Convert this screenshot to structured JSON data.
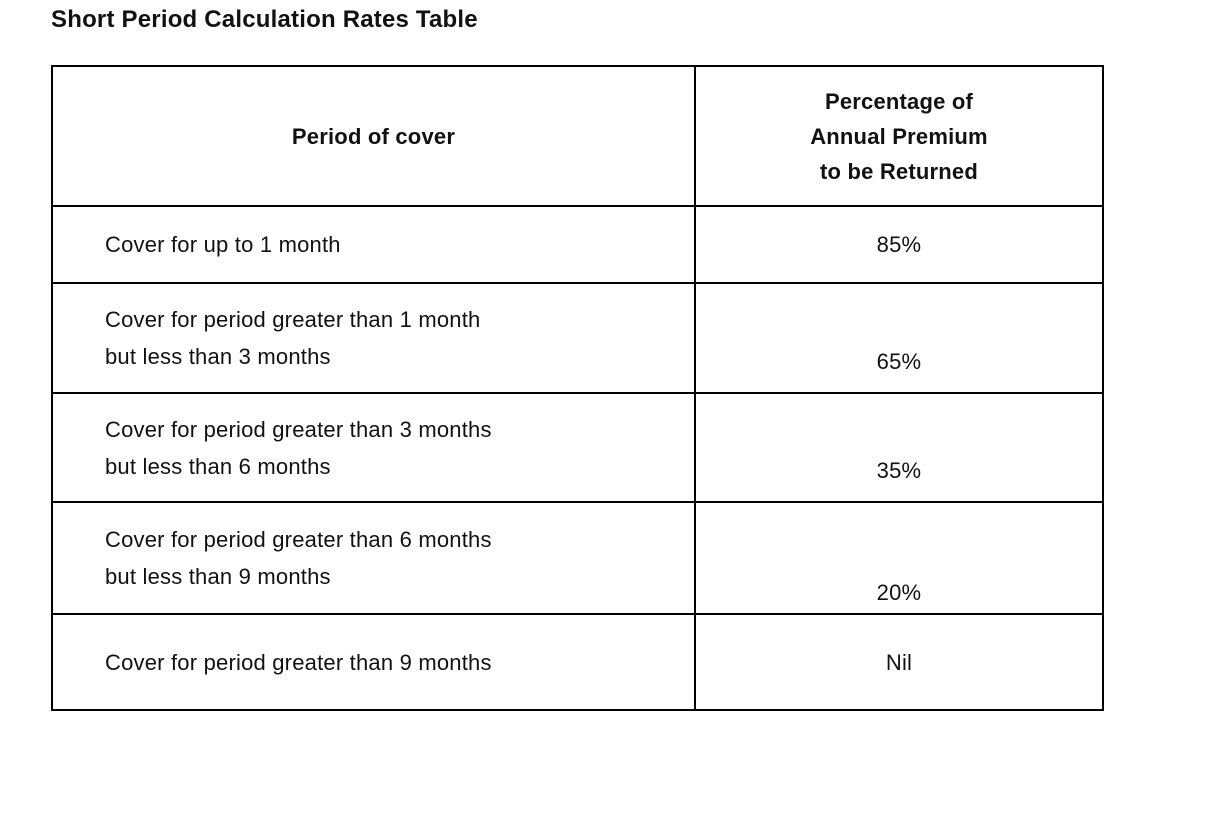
{
  "page": {
    "title": "Short Period Calculation Rates Table"
  },
  "table": {
    "headers": {
      "period": "Period of cover",
      "percentage": "Percentage of\nAnnual Premium\nto be Returned"
    },
    "rows": [
      {
        "period": "Cover for up to 1 month",
        "value": "85%"
      },
      {
        "period": "Cover for period greater than 1 month\nbut less than 3 months",
        "value": "65%"
      },
      {
        "period": "Cover for period greater than 3 months\nbut less than 6 months",
        "value": "35%"
      },
      {
        "period": "Cover for period greater than 6 months\nbut less than 9 months",
        "value": "20%"
      },
      {
        "period": "Cover for period greater than 9 months",
        "value": "Nil"
      }
    ]
  },
  "colors": {
    "text": "#111111",
    "border": "#000000",
    "background": "#ffffff"
  }
}
